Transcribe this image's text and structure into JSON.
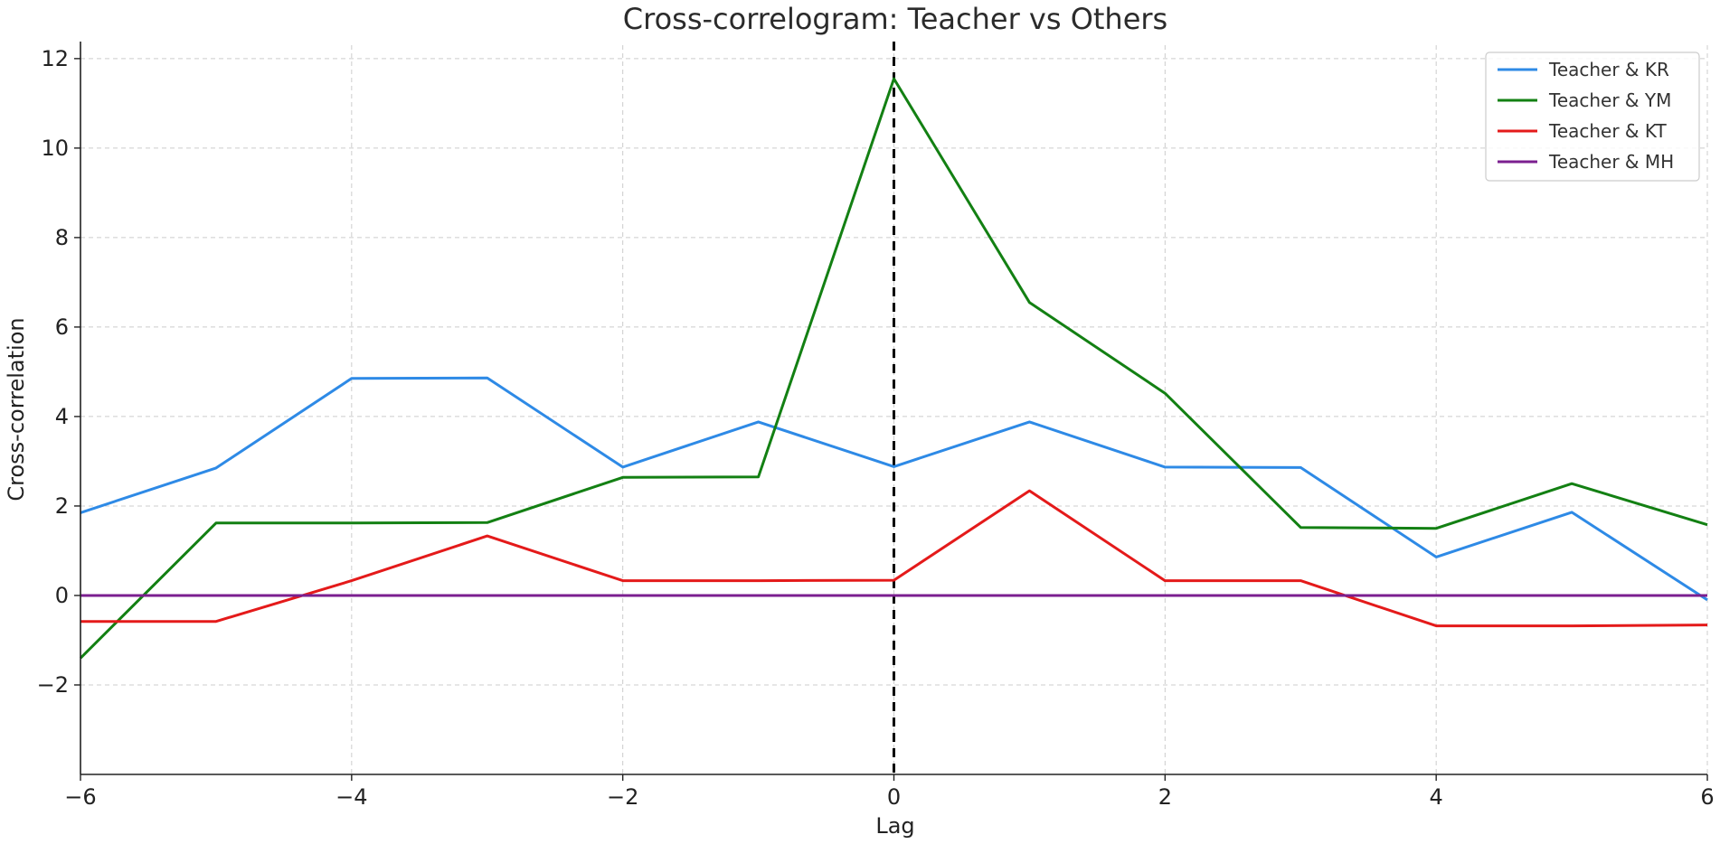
{
  "chart_data": {
    "type": "line",
    "title": "Cross-correlogram: Teacher vs Others",
    "xlabel": "Lag",
    "ylabel": "Cross-correlation",
    "xlim": [
      -6,
      6
    ],
    "ylim": [
      -4,
      12.3
    ],
    "xticks": [
      -6,
      -4,
      -2,
      0,
      2,
      4,
      6
    ],
    "xtick_labels": [
      "−6",
      "−4",
      "−2",
      "0",
      "2",
      "4",
      "6"
    ],
    "yticks": [
      -2,
      0,
      2,
      4,
      6,
      8,
      10,
      12
    ],
    "ytick_labels": [
      "−2",
      "0",
      "2",
      "4",
      "6",
      "8",
      "10",
      "12"
    ],
    "grid": true,
    "legend_position": "top-right",
    "vertical_reference_line": {
      "x": 0,
      "style": "dashed",
      "color": "#000000"
    },
    "x": [
      -6,
      -5,
      -4,
      -3,
      -2,
      -1,
      0,
      1,
      2,
      3,
      4,
      5,
      6
    ],
    "series": [
      {
        "name": "Teacher & KR",
        "color": "#2e8ae6",
        "values": [
          1.85,
          2.85,
          4.85,
          4.86,
          2.87,
          3.88,
          2.88,
          3.88,
          2.87,
          2.86,
          0.86,
          1.86,
          -0.1
        ]
      },
      {
        "name": "Teacher & YM",
        "color": "#138013",
        "values": [
          -1.4,
          1.62,
          1.62,
          1.63,
          2.64,
          2.65,
          11.55,
          6.55,
          4.52,
          1.52,
          1.5,
          2.5,
          1.58
        ]
      },
      {
        "name": "Teacher & KT",
        "color": "#e41a1a",
        "values": [
          -0.58,
          -0.58,
          0.33,
          1.33,
          0.33,
          0.33,
          0.34,
          2.34,
          0.33,
          0.33,
          -0.68,
          -0.68,
          -0.66
        ]
      },
      {
        "name": "Teacher & MH",
        "color": "#7b1f8f",
        "values": [
          0,
          0,
          0,
          0,
          0,
          0,
          0,
          0,
          0,
          0,
          0,
          0,
          0
        ]
      }
    ]
  }
}
